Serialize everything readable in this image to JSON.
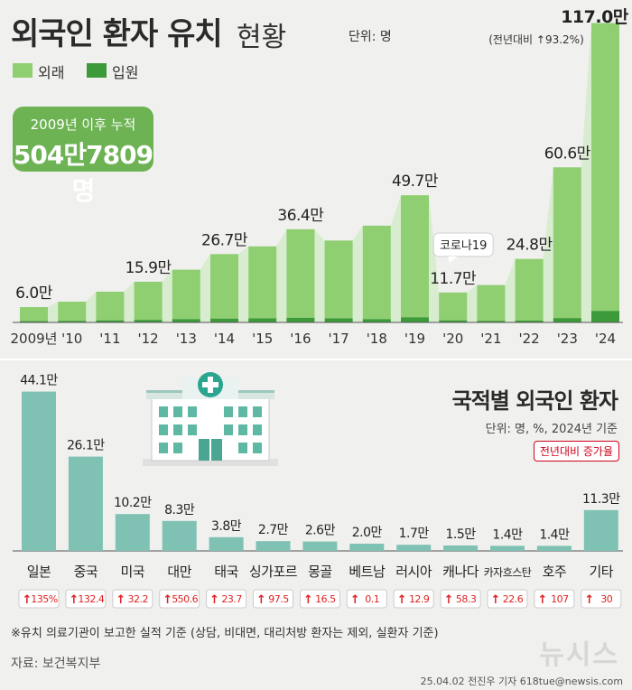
{
  "header": {
    "title_bold": "외국인 환자 유치",
    "title_light": "현황",
    "unit": "단위: 명"
  },
  "legend": [
    {
      "label": "외래",
      "color": "#8fcf72"
    },
    {
      "label": "입원",
      "color": "#3d9a3a"
    }
  ],
  "cumulative": {
    "line1": "2009년 이후 누적",
    "line2": "504만7809명"
  },
  "colors": {
    "outpatient": "#8fcf72",
    "inpatient": "#3d9a3a",
    "bar2": "#7fc1b3",
    "up_arrow": "#e02020",
    "background": "#f0f0ee"
  },
  "chart_data": [
    {
      "type": "bar",
      "title": "외국인 환자 유치 현황",
      "unit": "명",
      "stacked": true,
      "categories": [
        "2009년",
        "'10",
        "'11",
        "'12",
        "'13",
        "'14",
        "'15",
        "'16",
        "'17",
        "'18",
        "'19",
        "'20",
        "'21",
        "'22",
        "'23",
        "'24"
      ],
      "series": [
        {
          "name": "외래",
          "values": [
            5.5,
            7.5,
            11.2,
            14.9,
            19.3,
            25.2,
            28.1,
            34.6,
            30.4,
            36.5,
            47.7,
            10.9,
            14.0,
            24.1,
            58.9,
            112.5
          ]
        },
        {
          "name": "입원",
          "values": [
            0.5,
            0.6,
            0.8,
            1.0,
            1.3,
            1.5,
            1.6,
            1.8,
            1.6,
            1.3,
            2.0,
            0.8,
            0.6,
            0.7,
            1.7,
            4.5
          ]
        }
      ],
      "totals": [
        6.0,
        8.1,
        12.0,
        15.9,
        20.6,
        26.7,
        29.7,
        36.4,
        32.0,
        37.8,
        49.7,
        11.7,
        14.6,
        24.8,
        60.6,
        117.0
      ],
      "value_labels": [
        {
          "index": 0,
          "text": "6.0만"
        },
        {
          "index": 3,
          "text": "15.9만"
        },
        {
          "index": 5,
          "text": "26.7만"
        },
        {
          "index": 7,
          "text": "36.4만"
        },
        {
          "index": 10,
          "text": "49.7만"
        },
        {
          "index": 11,
          "text": "11.7만"
        },
        {
          "index": 13,
          "text": "24.8만"
        },
        {
          "index": 14,
          "text": "60.6만"
        },
        {
          "index": 15,
          "text": "117.0만"
        }
      ],
      "annotations": [
        {
          "index": 11,
          "text": "코로나19"
        },
        {
          "index": 15,
          "text": "(전년대비 ↑93.2%)"
        }
      ],
      "ylim": [
        0,
        120
      ]
    },
    {
      "type": "bar",
      "title": "국적별 외국인 환자",
      "unit": "단위: 명, %, 2024년 기준",
      "badge": "전년대비 증가율",
      "categories": [
        "일본",
        "중국",
        "미국",
        "대만",
        "태국",
        "싱가포르",
        "몽골",
        "베트남",
        "러시아",
        "캐나다",
        "카자흐스탄",
        "호주",
        "기타"
      ],
      "values": [
        44.1,
        26.1,
        10.2,
        8.3,
        3.8,
        2.7,
        2.6,
        2.0,
        1.7,
        1.5,
        1.4,
        1.4,
        11.3
      ],
      "value_labels": [
        "44.1만",
        "26.1만",
        "10.2만",
        "8.3만",
        "3.8만",
        "2.7만",
        "2.6만",
        "2.0만",
        "1.7만",
        "1.5만",
        "1.4만",
        "1.4만",
        "11.3만"
      ],
      "growth": [
        "135%",
        "132.4",
        "32.2",
        "550.6",
        "23.7",
        "97.5",
        "16.5",
        "0.1",
        "12.9",
        "58.3",
        "22.6",
        "107",
        "30"
      ],
      "ylim": [
        0,
        46
      ]
    }
  ],
  "footnote": "※유치 의료기관이 보고한 실적 기준 (상담, 비대면, 대리처방 환자는 제외, 실환자 기준)",
  "source": "자료: 보건복지부",
  "credit": "25.04.02 전진우 기자 618tue@newsis.com",
  "watermark": "뉴시스"
}
